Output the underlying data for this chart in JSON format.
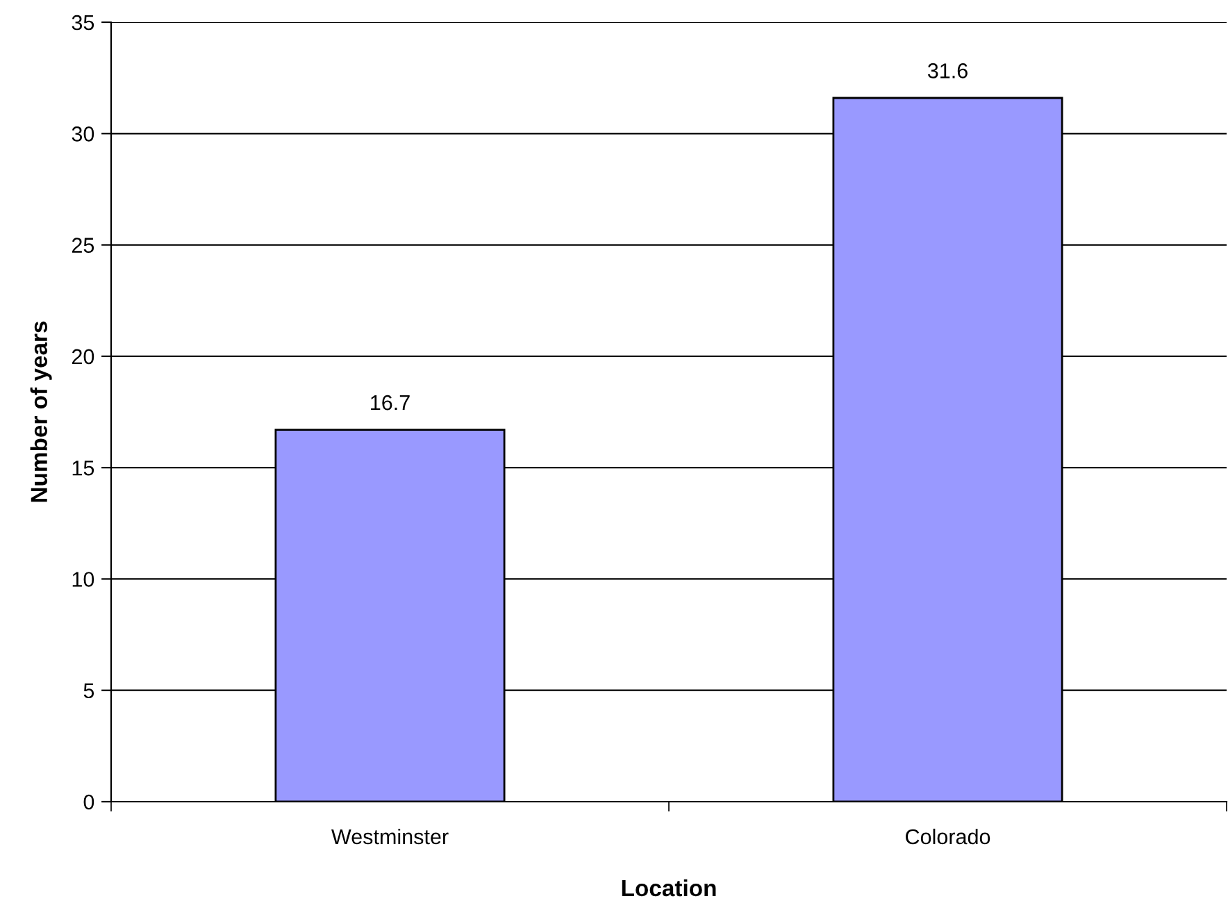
{
  "chart_data": {
    "type": "bar",
    "xlabel": "Location",
    "ylabel": "Number of years",
    "categories": [
      "Westminster",
      "Colorado"
    ],
    "values": [
      16.7,
      31.6
    ],
    "color": "#9999ff",
    "data_labels": true,
    "ylim": [
      0,
      35
    ],
    "yticks": [
      0,
      5,
      10,
      15,
      20,
      25,
      30,
      35
    ],
    "grid": "y",
    "legend": false
  }
}
